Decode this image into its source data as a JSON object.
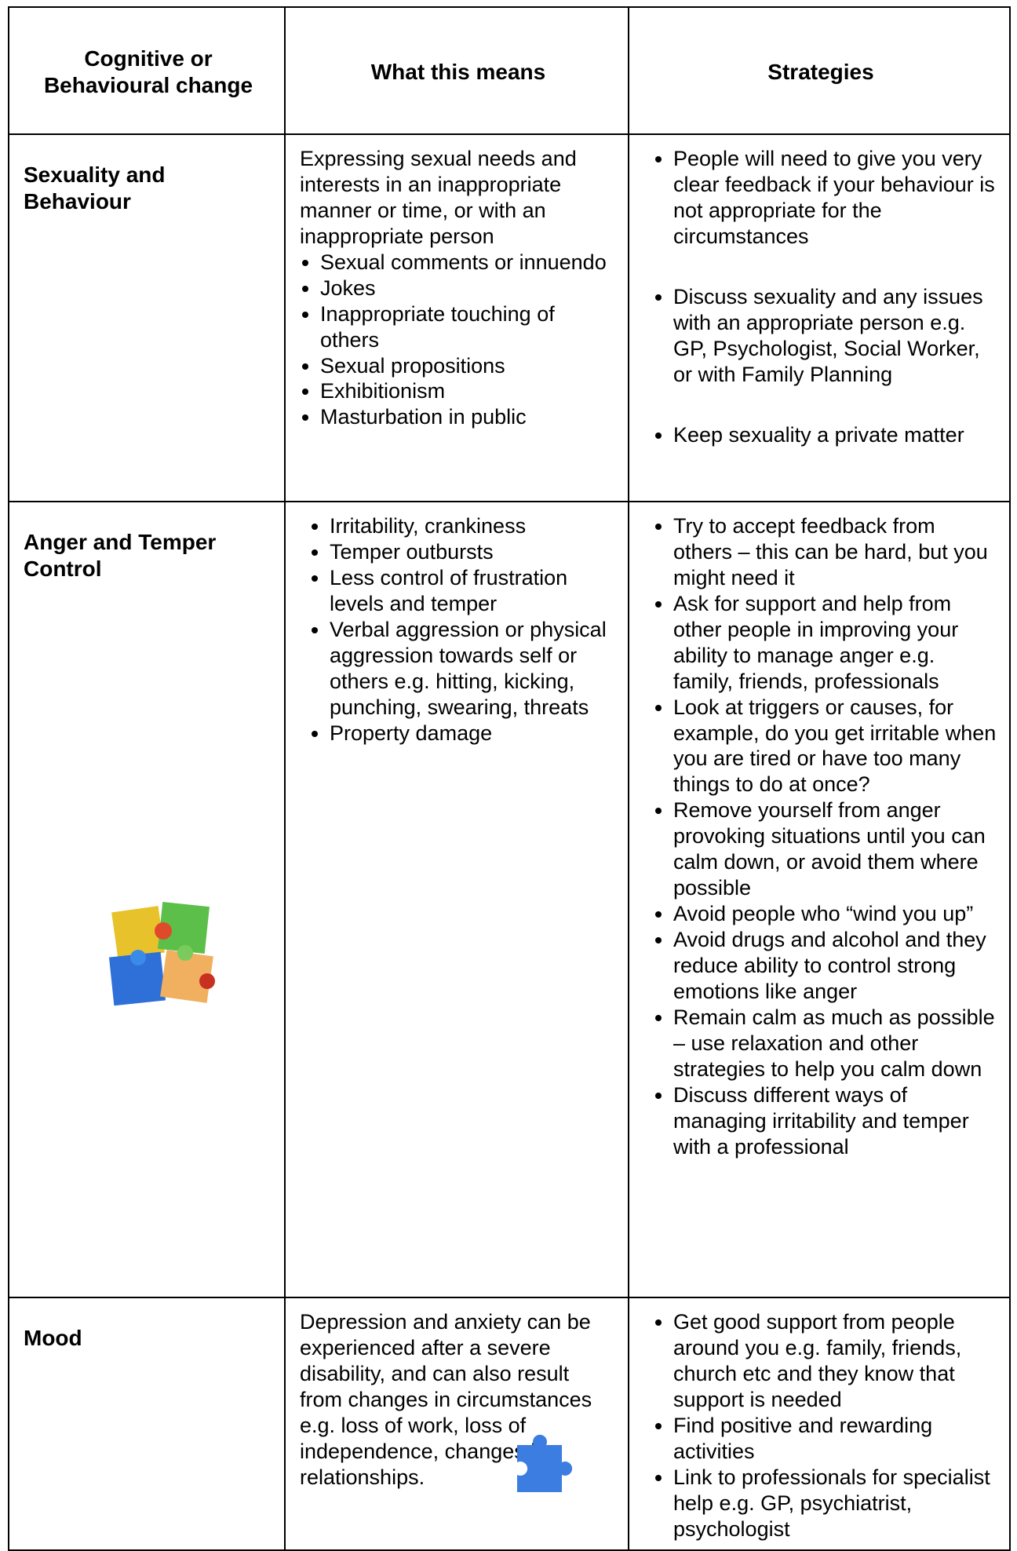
{
  "table": {
    "header": [
      "Cognitive or Behavioural change",
      "What this means",
      "Strategies"
    ],
    "rows": [
      {
        "change": "Sexuality and Behaviour",
        "means_text": "Expressing sexual needs and interests in an inappropriate manner or time, or with an inappropriate person",
        "means_bullets": [
          "Sexual comments or innuendo",
          "Jokes",
          "Inappropriate touching of others",
          "Sexual propositions",
          "Exhibitionism",
          "Masturbation in public"
        ],
        "strategies": [
          "People will need to give you very clear feedback if your behaviour is not appropriate for the circumstances",
          "Discuss sexuality and any issues with an appropriate person e.g. GP, Psychologist, Social Worker, or with Family Planning",
          "Keep sexuality a private matter"
        ]
      },
      {
        "change": "Anger and Temper Control",
        "means_bullets": [
          "Irritability, crankiness",
          "Temper outbursts",
          "Less control of frustration levels and temper",
          "Verbal aggression or physical aggression towards self or   others e.g. hitting, kicking, punching, swearing, threats",
          "Property damage"
        ],
        "strategies": [
          "Try to accept feedback from others – this can be hard, but you might need it",
          "Ask for support and help from other people in improving your ability to manage anger e.g. family, friends, professionals",
          "Look at triggers or causes, for example, do you get irritable when you are tired or have too many things to do at once?",
          "Remove yourself from anger provoking situations until you can calm down, or avoid them where possible",
          "Avoid people who “wind you up”",
          "Avoid drugs and alcohol and they reduce ability to control strong emotions like anger",
          "Remain calm as much as possible – use relaxation and other strategies to help you calm down",
          "Discuss different ways of managing irritability and temper with a professional"
        ]
      },
      {
        "change": "Mood",
        "means_text": "Depression and anxiety can be experienced after a severe disability, and can also result from changes in circumstances e.g. loss of work, loss of independence, changes in relationships.",
        "strategies": [
          "Get good support from people around you e.g. family, friends, church etc and they know that support is needed",
          "Find positive and rewarding activities",
          "Link to professionals for specialist help e.g. GP, psychiatrist, psychologist"
        ]
      }
    ]
  }
}
